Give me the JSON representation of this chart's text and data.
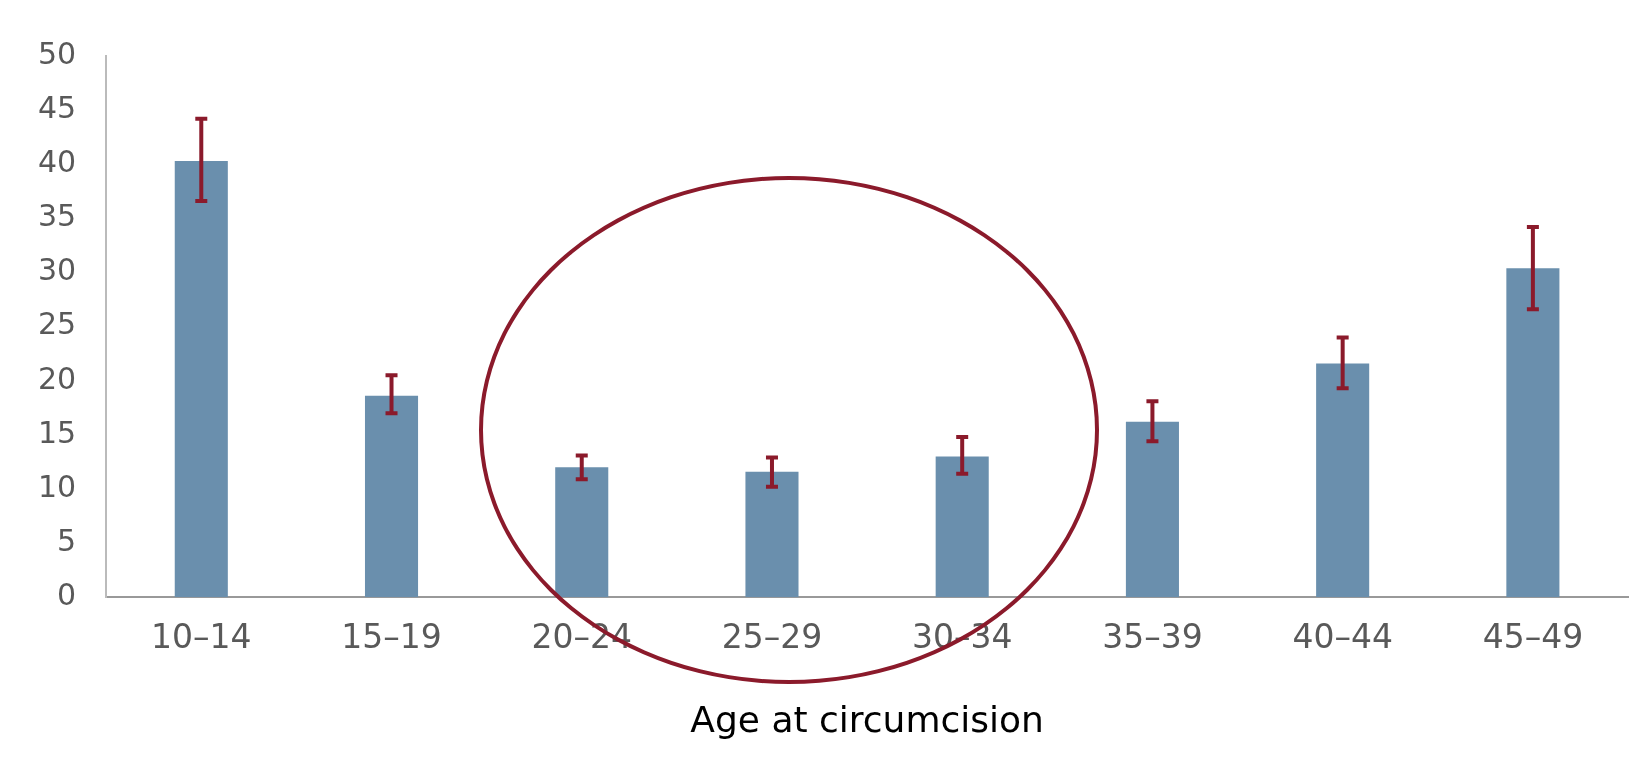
{
  "chart_data": {
    "type": "bar",
    "xlabel": "Age at circumcision",
    "categories": [
      "10–14",
      "15–19",
      "20–24",
      "25–29",
      "30–34",
      "35–39",
      "40–44",
      "45–49"
    ],
    "values": [
      40.3,
      18.6,
      12.0,
      11.6,
      13.0,
      16.2,
      21.6,
      30.4
    ],
    "color": "#6a8fad",
    "errors": [
      [
        36.6,
        44.2
      ],
      [
        17.0,
        20.5
      ],
      [
        10.9,
        13.1
      ],
      [
        10.2,
        12.9
      ],
      [
        11.4,
        14.8
      ],
      [
        14.4,
        18.1
      ],
      [
        19.3,
        24.0
      ],
      [
        26.6,
        34.2
      ]
    ],
    "ylim": [
      0,
      50
    ],
    "yticks": [
      0,
      5,
      10,
      15,
      20,
      25,
      30,
      35,
      40,
      45,
      50
    ],
    "grid": false,
    "legend": false
  }
}
